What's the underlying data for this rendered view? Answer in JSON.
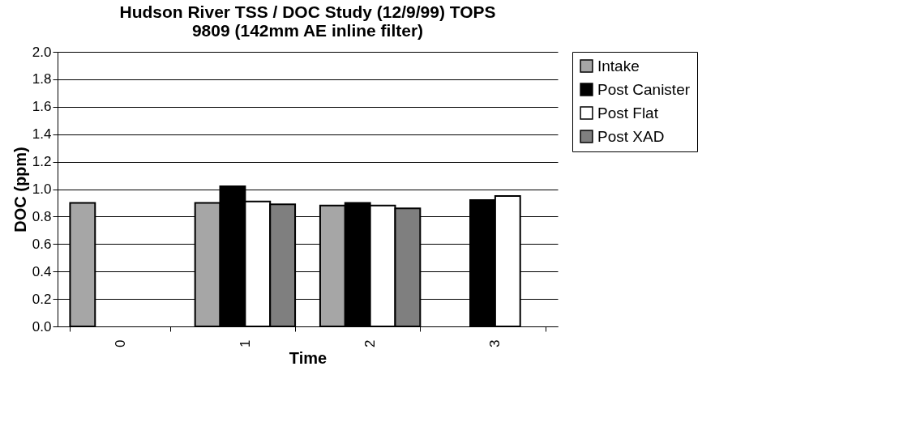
{
  "chart_data": {
    "type": "bar",
    "title": [
      "Hudson River TSS / DOC Study (12/9/99) TOPS",
      "9809 (142mm AE inline filter)"
    ],
    "xlabel": "Time",
    "ylabel": "DOC (ppm)",
    "categories": [
      "0",
      "1",
      "2",
      "3"
    ],
    "series": [
      {
        "name": "Intake",
        "color": "#a6a6a6",
        "values": [
          0.9,
          0.9,
          0.88,
          null
        ]
      },
      {
        "name": "Post Canister",
        "color": "#000000",
        "values": [
          null,
          1.02,
          0.9,
          0.92
        ]
      },
      {
        "name": "Post Flat",
        "color": "#ffffff",
        "values": [
          null,
          0.91,
          0.88,
          0.95
        ]
      },
      {
        "name": "Post XAD",
        "color": "#7f7f7f",
        "values": [
          null,
          0.89,
          0.86,
          null
        ]
      }
    ],
    "ylim": [
      0,
      2
    ],
    "yticks": [
      {
        "value": 0,
        "label": "0.0"
      },
      {
        "value": 0.2,
        "label": "0.2"
      },
      {
        "value": 0.4,
        "label": "0.4"
      },
      {
        "value": 0.6,
        "label": "0.6"
      },
      {
        "value": 0.8,
        "label": "0.8"
      },
      {
        "value": 1,
        "label": "1.0"
      },
      {
        "value": 1.2,
        "label": "1.2"
      },
      {
        "value": 1.4,
        "label": "1.4"
      },
      {
        "value": 1.6,
        "label": "1.6"
      },
      {
        "value": 1.8,
        "label": "1.8"
      },
      {
        "value": 2,
        "label": "2.0"
      }
    ],
    "grid": "y",
    "legend": "right"
  }
}
